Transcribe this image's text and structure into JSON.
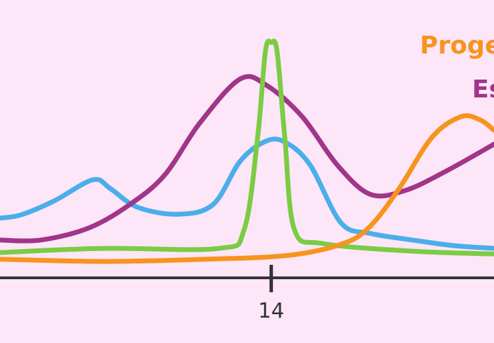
{
  "chart_data": {
    "type": "line",
    "xlim": [
      0,
      25.5
    ],
    "ylim": [
      0,
      100
    ],
    "xticks": [
      14
    ],
    "series": [
      {
        "color": "#4aaeea",
        "x": [
          0,
          1.1,
          2.8,
          4.8,
          5.7,
          7.1,
          9.2,
          11,
          12.4,
          13.7,
          14.7,
          16,
          17.6,
          19.1,
          21.3,
          23.4,
          25.5
        ],
        "values": [
          21.5,
          22.7,
          27.7,
          35.3,
          32.1,
          25.4,
          22.9,
          26.4,
          42,
          49.1,
          48.9,
          40.7,
          19.8,
          16,
          13.6,
          11.6,
          10.6
        ]
      },
      {
        "name": "Es",
        "color": "#a0358a",
        "x": [
          0,
          2.1,
          4.6,
          6.7,
          8.5,
          10.3,
          12.4,
          13.8,
          15.6,
          17.4,
          19.1,
          20.9,
          23,
          25.5
        ],
        "values": [
          13.6,
          13.6,
          18,
          26.4,
          37,
          55.6,
          71.6,
          69.1,
          58,
          40.7,
          30.1,
          31.4,
          38.3,
          48.1
        ]
      },
      {
        "color": "#7ccb45",
        "x": [
          0,
          5.3,
          11.3,
          12.6,
          13.3,
          13.7,
          14,
          14.3,
          14.7,
          15.2,
          16.7,
          21.3,
          25.5
        ],
        "values": [
          9.1,
          10.6,
          10.6,
          17.3,
          50.6,
          81.5,
          84.7,
          81.5,
          50.6,
          17.3,
          12.3,
          9.6,
          8.6
        ]
      },
      {
        "name": "Proge",
        "color": "#f7941d",
        "x": [
          0,
          5.3,
          10.6,
          14.9,
          17.7,
          19.1,
          20.6,
          22.3,
          23.8,
          24.8,
          25.5
        ],
        "values": [
          6.7,
          5.9,
          6.7,
          8.1,
          12.3,
          18.5,
          32.1,
          50.6,
          58,
          56.8,
          53.1
        ]
      }
    ]
  }
}
